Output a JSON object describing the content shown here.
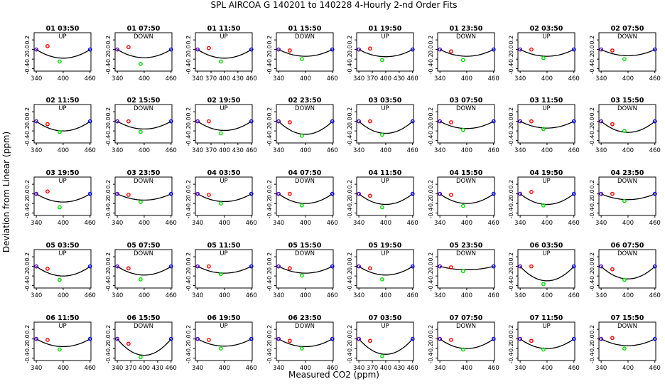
{
  "title": "SPL   AIRCOA G   140201 to 140228   4-Hourly 2-nd Order Fits",
  "xlabel": "Measured CO2 (ppm)",
  "ylabel": "Deviation from Linear (ppm)",
  "colors": {
    "curve": "#000000",
    "ref_low": "#5500cc",
    "ref_high": "#0000ff",
    "mid": "#ff0000",
    "mid2": "#00dd00"
  },
  "chart_data": {
    "type": "scatter",
    "title": "SPL   AIRCOA G   140201 to 140228   4-Hourly 2-nd Order Fits",
    "xlabel": "Measured CO2 (ppm)",
    "ylabel": "Deviation from Linear (ppm)",
    "xlim": [
      335,
      462
    ],
    "ylim": [
      -0.45,
      0.35
    ],
    "xticks": [
      340,
      400,
      460
    ],
    "xticks_dense": [
      340,
      370,
      400,
      430,
      460
    ],
    "yticks": [
      -0.4,
      -0.2,
      0.0,
      0.2
    ],
    "ytick_labels": [
      "-0.4",
      "-0.2",
      "0.0",
      "0.2"
    ],
    "reference_x": [
      340,
      365,
      392,
      460
    ],
    "panels": [
      {
        "label": "01 03:50",
        "dir": "UP",
        "dense": false,
        "points": [
          0.0,
          0.07,
          -0.25,
          0.0
        ],
        "vertex_y": -0.18
      },
      {
        "label": "01 07:50",
        "dir": "DOWN",
        "dense": false,
        "points": [
          0.0,
          0.05,
          -0.3,
          0.0
        ],
        "vertex_y": -0.17
      },
      {
        "label": "01 11:50",
        "dir": "UP",
        "dense": true,
        "points": [
          0.0,
          0.03,
          -0.25,
          0.0
        ],
        "vertex_y": -0.18
      },
      {
        "label": "01 15:50",
        "dir": "DOWN",
        "dense": false,
        "points": [
          0.0,
          -0.02,
          -0.2,
          0.0
        ],
        "vertex_y": -0.14
      },
      {
        "label": "01 19:50",
        "dir": "UP",
        "dense": true,
        "points": [
          0.0,
          0.02,
          -0.22,
          0.0
        ],
        "vertex_y": -0.15
      },
      {
        "label": "01 23:50",
        "dir": "DOWN",
        "dense": false,
        "points": [
          0.0,
          -0.04,
          -0.22,
          0.0
        ],
        "vertex_y": -0.14
      },
      {
        "label": "02 03:50",
        "dir": "UP",
        "dense": false,
        "points": [
          0.0,
          0.0,
          -0.18,
          0.0
        ],
        "vertex_y": -0.14
      },
      {
        "label": "02 07:50",
        "dir": "DOWN",
        "dense": false,
        "points": [
          0.0,
          -0.02,
          -0.2,
          0.0
        ],
        "vertex_y": -0.13
      },
      {
        "label": "02 11:50",
        "dir": "UP",
        "dense": false,
        "points": [
          0.0,
          -0.06,
          -0.22,
          0.0
        ],
        "vertex_y": -0.2
      },
      {
        "label": "02 15:50",
        "dir": "DOWN",
        "dense": false,
        "points": [
          0.0,
          0.0,
          -0.22,
          0.0
        ],
        "vertex_y": -0.16
      },
      {
        "label": "02 19:50",
        "dir": "UP",
        "dense": true,
        "points": [
          0.0,
          0.0,
          -0.25,
          0.0
        ],
        "vertex_y": -0.19
      },
      {
        "label": "02 23:50",
        "dir": "DOWN",
        "dense": false,
        "points": [
          0.0,
          -0.02,
          -0.3,
          0.0
        ],
        "vertex_y": -0.27
      },
      {
        "label": "03 03:50",
        "dir": "UP",
        "dense": false,
        "points": [
          0.0,
          0.0,
          -0.28,
          0.0
        ],
        "vertex_y": -0.25
      },
      {
        "label": "03 07:50",
        "dir": "DOWN",
        "dense": false,
        "points": [
          0.0,
          -0.02,
          -0.18,
          0.0
        ],
        "vertex_y": -0.15
      },
      {
        "label": "03 11:50",
        "dir": "UP",
        "dense": false,
        "points": [
          0.0,
          0.0,
          -0.16,
          0.0
        ],
        "vertex_y": -0.14
      },
      {
        "label": "03 15:50",
        "dir": "DOWN",
        "dense": false,
        "points": [
          0.0,
          -0.06,
          -0.2,
          0.0
        ],
        "vertex_y": -0.23
      },
      {
        "label": "03 19:50",
        "dir": "UP",
        "dense": false,
        "points": [
          0.0,
          0.05,
          -0.28,
          0.0
        ],
        "vertex_y": -0.17
      },
      {
        "label": "03 23:50",
        "dir": "DOWN",
        "dense": false,
        "points": [
          0.0,
          -0.02,
          -0.17,
          0.0
        ],
        "vertex_y": -0.13
      },
      {
        "label": "04 03:50",
        "dir": "UP",
        "dense": false,
        "points": [
          0.0,
          -0.02,
          -0.2,
          0.0
        ],
        "vertex_y": -0.16
      },
      {
        "label": "04 07:50",
        "dir": "DOWN",
        "dense": false,
        "points": [
          0.0,
          0.0,
          -0.24,
          0.0
        ],
        "vertex_y": -0.2
      },
      {
        "label": "04 11:50",
        "dir": "UP",
        "dense": false,
        "points": [
          0.0,
          -0.04,
          -0.28,
          0.0
        ],
        "vertex_y": -0.22
      },
      {
        "label": "04 15:50",
        "dir": "DOWN",
        "dense": false,
        "points": [
          0.0,
          -0.02,
          -0.25,
          0.0
        ],
        "vertex_y": -0.2
      },
      {
        "label": "04 19:50",
        "dir": "UP",
        "dense": false,
        "points": [
          0.0,
          0.04,
          -0.24,
          0.0
        ],
        "vertex_y": -0.22
      },
      {
        "label": "04 23:50",
        "dir": "DOWN",
        "dense": false,
        "points": [
          0.0,
          0.0,
          -0.15,
          0.0
        ],
        "vertex_y": -0.12
      },
      {
        "label": "05 03:50",
        "dir": "UP",
        "dense": false,
        "points": [
          0.0,
          -0.05,
          -0.28,
          0.0
        ],
        "vertex_y": -0.2
      },
      {
        "label": "05 07:50",
        "dir": "DOWN",
        "dense": false,
        "points": [
          0.0,
          -0.04,
          -0.27,
          0.0
        ],
        "vertex_y": -0.18
      },
      {
        "label": "05 11:50",
        "dir": "UP",
        "dense": false,
        "points": [
          0.0,
          0.0,
          -0.16,
          0.0
        ],
        "vertex_y": -0.14
      },
      {
        "label": "05 15:50",
        "dir": "DOWN",
        "dense": false,
        "points": [
          0.0,
          -0.04,
          -0.19,
          0.0
        ],
        "vertex_y": -0.14
      },
      {
        "label": "05 19:50",
        "dir": "UP",
        "dense": false,
        "points": [
          0.0,
          -0.04,
          -0.27,
          0.0
        ],
        "vertex_y": -0.18
      },
      {
        "label": "05 23:50",
        "dir": "DOWN",
        "dense": false,
        "points": [
          0.0,
          -0.02,
          -0.1,
          0.0
        ],
        "vertex_y": -0.07
      },
      {
        "label": "06 03:50",
        "dir": "UP",
        "dense": false,
        "points": [
          0.0,
          0.0,
          -0.37,
          0.0
        ],
        "vertex_y": -0.3
      },
      {
        "label": "06 07:50",
        "dir": "DOWN",
        "dense": false,
        "points": [
          0.0,
          -0.06,
          -0.28,
          0.0
        ],
        "vertex_y": -0.26
      },
      {
        "label": "06 11:50",
        "dir": "UP",
        "dense": false,
        "points": [
          0.0,
          -0.02,
          -0.22,
          0.0
        ],
        "vertex_y": -0.16
      },
      {
        "label": "06 15:50",
        "dir": "DOWN",
        "dense": true,
        "points": [
          0.0,
          -0.1,
          -0.38,
          0.0
        ],
        "vertex_y": -0.34
      },
      {
        "label": "06 19:50",
        "dir": "UP",
        "dense": false,
        "points": [
          0.0,
          -0.02,
          -0.2,
          0.0
        ],
        "vertex_y": -0.15
      },
      {
        "label": "06 23:50",
        "dir": "DOWN",
        "dense": false,
        "points": [
          0.0,
          -0.04,
          -0.2,
          0.0
        ],
        "vertex_y": -0.16
      },
      {
        "label": "07 03:50",
        "dir": "UP",
        "dense": true,
        "points": [
          0.0,
          -0.04,
          -0.36,
          0.0
        ],
        "vertex_y": -0.32
      },
      {
        "label": "07 07:50",
        "dir": "DOWN",
        "dense": false,
        "points": [
          0.0,
          -0.02,
          -0.22,
          0.0
        ],
        "vertex_y": -0.2
      },
      {
        "label": "07 11:50",
        "dir": "UP",
        "dense": false,
        "points": [
          0.0,
          -0.04,
          -0.22,
          0.0
        ],
        "vertex_y": -0.2
      },
      {
        "label": "07 15:50",
        "dir": "DOWN",
        "dense": false,
        "points": [
          0.0,
          0.02,
          -0.2,
          0.0
        ],
        "vertex_y": -0.14
      }
    ]
  }
}
